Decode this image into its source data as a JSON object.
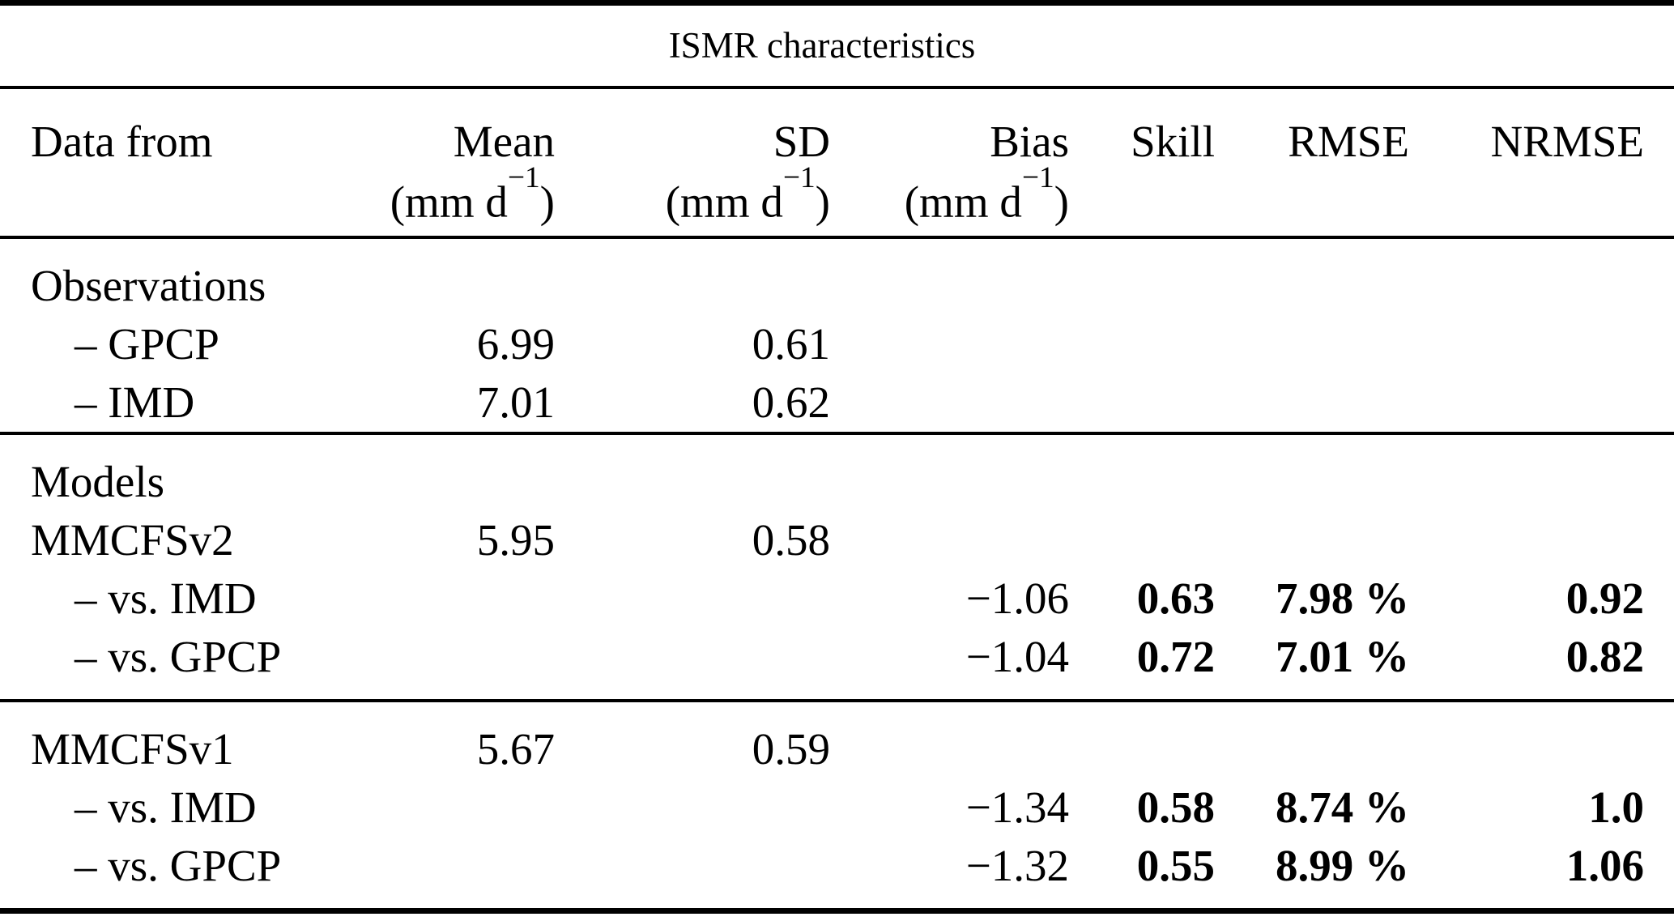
{
  "colors": {
    "background": "#ffffff",
    "text": "#000000",
    "rule": "#000000"
  },
  "title": "ISMR characteristics",
  "columns": [
    {
      "label": "Data from"
    },
    {
      "label": "Mean",
      "unit": {
        "pre": "(mm d",
        "sup": "−1",
        "post": ")"
      }
    },
    {
      "label": "SD",
      "unit": {
        "pre": "(mm d",
        "sup": "−1",
        "post": ")"
      }
    },
    {
      "label": "Bias",
      "unit": {
        "pre": "(mm d",
        "sup": "−1",
        "post": ")"
      }
    },
    {
      "label": "Skill"
    },
    {
      "label": "RMSE"
    },
    {
      "label": "NRMSE"
    }
  ],
  "sections": [
    {
      "rows": [
        {
          "label": "Observations",
          "mean": "",
          "sd": "",
          "bias": "",
          "skill": "",
          "rmse": "",
          "nrmse": ""
        },
        {
          "label": "– GPCP",
          "mean": "6.99",
          "sd": "0.61",
          "bias": "",
          "skill": "",
          "rmse": "",
          "nrmse": ""
        },
        {
          "label": "– IMD",
          "mean": "7.01",
          "sd": "0.62",
          "bias": "",
          "skill": "",
          "rmse": "",
          "nrmse": ""
        }
      ]
    },
    {
      "rows": [
        {
          "label": "Models",
          "mean": "",
          "sd": "",
          "bias": "",
          "skill": "",
          "rmse": "",
          "nrmse": ""
        },
        {
          "label": "MMCFSv2",
          "mean": "5.95",
          "sd": "0.58",
          "bias": "",
          "skill": "",
          "rmse": "",
          "nrmse": ""
        },
        {
          "label": "– vs. IMD",
          "mean": "",
          "sd": "",
          "bias": "−1.06",
          "skill": "0.63",
          "rmse": "7.98 %",
          "nrmse": "0.92"
        },
        {
          "label": "– vs. GPCP",
          "mean": "",
          "sd": "",
          "bias": "−1.04",
          "skill": "0.72",
          "rmse": "7.01 %",
          "nrmse": "0.82"
        }
      ]
    },
    {
      "rows": [
        {
          "label": "MMCFSv1",
          "mean": "5.67",
          "sd": "0.59",
          "bias": "",
          "skill": "",
          "rmse": "",
          "nrmse": ""
        },
        {
          "label": "– vs. IMD",
          "mean": "",
          "sd": "",
          "bias": "−1.34",
          "skill": "0.58",
          "rmse": "8.74 %",
          "nrmse": "1.0"
        },
        {
          "label": "– vs. GPCP",
          "mean": "",
          "sd": "",
          "bias": "−1.32",
          "skill": "0.55",
          "rmse": "8.99 %",
          "nrmse": "1.06"
        }
      ]
    }
  ]
}
